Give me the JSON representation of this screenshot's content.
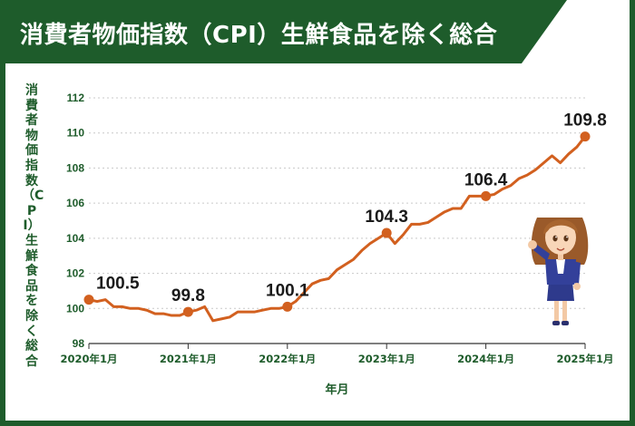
{
  "title": "消費者物価指数（CPI）生鮮食品を除く総合",
  "colors": {
    "frame": "#1e5c2b",
    "line": "#d2601f",
    "grid": "#c9c9c9",
    "axis_text": "#1e5c2b",
    "label_text": "#1a1a1a"
  },
  "chart_data": {
    "type": "line",
    "title": "消費者物価指数（CPI）生鮮食品を除く総合",
    "xlabel": "年月",
    "ylabel": "消費者物価指数（CPI）生鮮食品を除く総合",
    "ylim": [
      98,
      112
    ],
    "yticks": [
      98,
      100,
      102,
      104,
      106,
      108,
      110,
      112
    ],
    "xticks": [
      "2020年1月",
      "2021年1月",
      "2022年1月",
      "2023年1月",
      "2024年1月",
      "2025年1月"
    ],
    "grid": "horizontal",
    "x": [
      "2020-01",
      "2020-02",
      "2020-03",
      "2020-04",
      "2020-05",
      "2020-06",
      "2020-07",
      "2020-08",
      "2020-09",
      "2020-10",
      "2020-11",
      "2020-12",
      "2021-01",
      "2021-02",
      "2021-03",
      "2021-04",
      "2021-05",
      "2021-06",
      "2021-07",
      "2021-08",
      "2021-09",
      "2021-10",
      "2021-11",
      "2021-12",
      "2022-01",
      "2022-02",
      "2022-03",
      "2022-04",
      "2022-05",
      "2022-06",
      "2022-07",
      "2022-08",
      "2022-09",
      "2022-10",
      "2022-11",
      "2022-12",
      "2023-01",
      "2023-02",
      "2023-03",
      "2023-04",
      "2023-05",
      "2023-06",
      "2023-07",
      "2023-08",
      "2023-09",
      "2023-10",
      "2023-11",
      "2023-12",
      "2024-01",
      "2024-02",
      "2024-03",
      "2024-04",
      "2024-05",
      "2024-06",
      "2024-07",
      "2024-08",
      "2024-09",
      "2024-10",
      "2024-11",
      "2024-12",
      "2025-01"
    ],
    "values": [
      100.5,
      100.4,
      100.5,
      100.1,
      100.1,
      100.0,
      100.0,
      99.9,
      99.7,
      99.7,
      99.6,
      99.6,
      99.8,
      99.9,
      100.1,
      99.3,
      99.4,
      99.5,
      99.8,
      99.8,
      99.8,
      99.9,
      100.0,
      100.0,
      100.1,
      100.4,
      100.9,
      101.4,
      101.6,
      101.7,
      102.2,
      102.5,
      102.8,
      103.3,
      103.7,
      104.0,
      104.3,
      103.7,
      104.2,
      104.8,
      104.8,
      104.9,
      105.2,
      105.5,
      105.7,
      105.7,
      106.4,
      106.4,
      106.4,
      106.5,
      106.8,
      107.0,
      107.4,
      107.6,
      107.9,
      108.3,
      108.7,
      108.3,
      108.8,
      109.2,
      109.8
    ],
    "highlighted_points": [
      {
        "x": "2020-01",
        "y": 100.5,
        "label": "100.5"
      },
      {
        "x": "2021-01",
        "y": 99.8,
        "label": "99.8"
      },
      {
        "x": "2022-01",
        "y": 100.1,
        "label": "100.1"
      },
      {
        "x": "2023-01",
        "y": 104.3,
        "label": "104.3"
      },
      {
        "x": "2024-01",
        "y": 106.4,
        "label": "106.4"
      },
      {
        "x": "2025-01",
        "y": 109.8,
        "label": "109.8"
      }
    ]
  }
}
